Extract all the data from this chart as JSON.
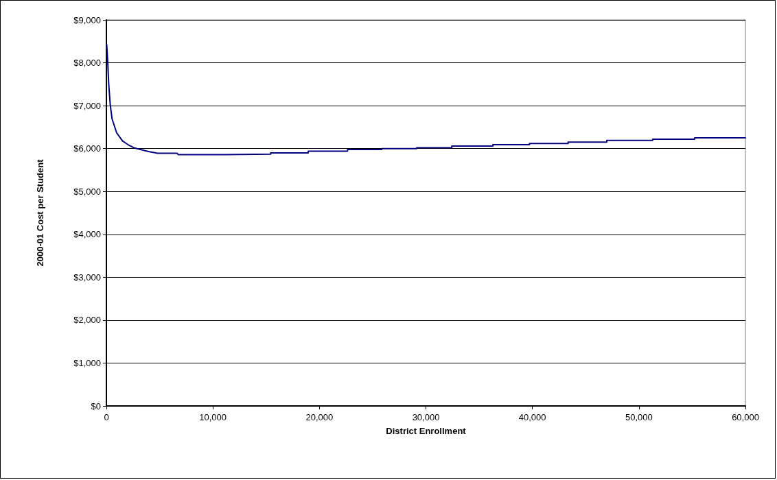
{
  "chart_data": {
    "type": "line",
    "xlabel": "District Enrollment",
    "ylabel": "2000-01 Cost per Student",
    "x": [
      30,
      130,
      215,
      365,
      535,
      960,
      1500,
      2040,
      2570,
      3320,
      3960,
      4820,
      6640,
      6740,
      11080,
      11080,
      15420,
      15420,
      18950,
      18950,
      22640,
      22640,
      25850,
      25850,
      29130,
      29130,
      32430,
      32430,
      36290,
      36290,
      39720,
      39720,
      43350,
      43350,
      46980,
      46980,
      51290,
      51290,
      55240,
      55240,
      60000
    ],
    "series": [
      {
        "color": "#000080",
        "values": [
          8420,
          8000,
          7520,
          7010,
          6690,
          6370,
          6180,
          6090,
          6020,
          5970,
          5930,
          5890,
          5890,
          5860,
          5860,
          5870,
          5870,
          5900,
          5900,
          5940,
          5940,
          5980,
          5980,
          6000,
          6000,
          6020,
          6020,
          6060,
          6060,
          6090,
          6090,
          6120,
          6120,
          6150,
          6150,
          6190,
          6190,
          6220,
          6220,
          6250,
          6250
        ]
      }
    ],
    "xlim": [
      0,
      60000
    ],
    "xticks": [
      0,
      {
        "value": 10000,
        "label": "10,000"
      },
      {
        "value": 20000,
        "label": "20,000"
      },
      {
        "value": 30000,
        "label": "30,000"
      },
      {
        "value": 40000,
        "label": "40,000"
      },
      {
        "value": 50000,
        "label": "50,000"
      },
      {
        "value": 60000,
        "label": "60,000"
      }
    ],
    "ylim": [
      0,
      9000
    ],
    "yticks": [
      {
        "value": 0,
        "label": "$0"
      },
      {
        "value": 1000,
        "label": "$1,000"
      },
      {
        "value": 2000,
        "label": "$2,000"
      },
      {
        "value": 3000,
        "label": "$3,000"
      },
      {
        "value": 4000,
        "label": "$4,000"
      },
      {
        "value": 5000,
        "label": "$5,000"
      },
      {
        "value": 6000,
        "label": "$6,000"
      },
      {
        "value": 7000,
        "label": "$7,000"
      },
      {
        "value": 8000,
        "label": "$8,000"
      },
      {
        "value": 9000,
        "label": "$9,000"
      }
    ],
    "grid": "y",
    "marker": "none",
    "line_style": "solid"
  }
}
